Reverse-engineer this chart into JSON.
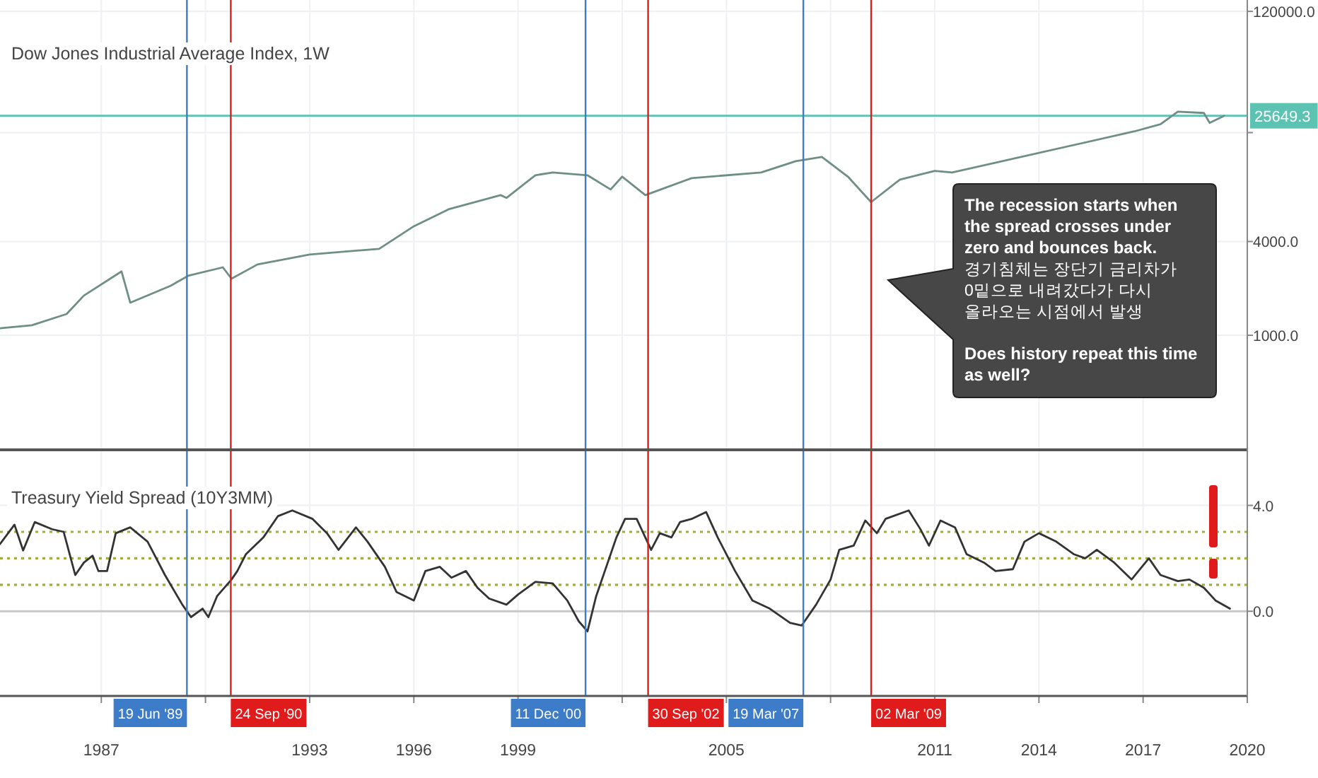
{
  "chart_data": [
    {
      "type": "line",
      "title": "Dow Jones Industrial Average Index, 1W",
      "log": "y",
      "grid": true,
      "tick_labels": "y",
      "color": "#6f8f86",
      "x": [
        "1984-02",
        "1985-01",
        "1986-01",
        "1986-07",
        "1987-08",
        "1987-11",
        "1989-01",
        "1989-07",
        "1990-07",
        "1990-10",
        "1991-07",
        "1993-01",
        "1995-01",
        "1996-01",
        "1997-01",
        "1998-07",
        "1998-09",
        "1999-07",
        "2000-01",
        "2001-01",
        "2001-09",
        "2002-01",
        "2002-09",
        "2003-01",
        "2004-01",
        "2006-01",
        "2007-01",
        "2007-10",
        "2008-07",
        "2009-03",
        "2010-01",
        "2011-01",
        "2011-07",
        "2016-10",
        "2017-07",
        "2018-01",
        "2018-10",
        "2018-12",
        "2019-05"
      ],
      "values": [
        1110,
        1160,
        1370,
        1800,
        2570,
        1620,
        2080,
        2410,
        2730,
        2310,
        2850,
        3300,
        3590,
        5010,
        6440,
        7940,
        7620,
        10650,
        11100,
        10650,
        8630,
        10430,
        7940,
        8450,
        10210,
        11100,
        13120,
        13970,
        10430,
        7160,
        10000,
        11350,
        11100,
        20370,
        22640,
        27290,
        26730,
        23110,
        25649.3
      ],
      "xlim": [
        "1984-02",
        "2020-01"
      ],
      "xticks": [
        "1987",
        {
          "value": "1990",
          "label": null
        },
        "1993",
        "1996",
        "1999",
        {
          "value": "2002",
          "label": null
        },
        "2005",
        {
          "value": "2008",
          "label": null
        },
        "2011",
        "2014",
        "2017",
        "2020"
      ],
      "ylim": [
        184,
        142000
      ],
      "yticks": [
        {
          "value": 1000,
          "label": "1000.0"
        },
        {
          "value": 4000,
          "label": "4000.0"
        },
        {
          "value": 20000,
          "label": null
        },
        {
          "value": 120000,
          "label": "120000.0"
        }
      ],
      "ref_lines": [
        {
          "axis": "y",
          "value": 25649.3,
          "label": "25649.3",
          "color": "#5cc2b2"
        },
        {
          "axis": "x",
          "value": "1989-06-19",
          "color": "#3d7cc9"
        },
        {
          "axis": "x",
          "value": "1990-09-24",
          "color": "#e01b1b"
        },
        {
          "axis": "x",
          "value": "2000-12-11",
          "color": "#3d7cc9"
        },
        {
          "axis": "x",
          "value": "2002-09-30",
          "color": "#e01b1b"
        },
        {
          "axis": "x",
          "value": "2007-03-19",
          "color": "#3d7cc9"
        },
        {
          "axis": "x",
          "value": "2009-03-02",
          "color": "#e01b1b"
        }
      ],
      "annotations": [
        "The recession starts when the spread crosses under zero and bounces back.",
        "경기침체는 장단기 금리차가 0밑으로 내려갔다가 다시 올라오는 시점에서 발생",
        "Does history repeat this time as well?"
      ]
    },
    {
      "type": "line",
      "title": "Treasury Yield Spread (10Y3MM)",
      "grid": true,
      "color": "#333333",
      "x": [
        "1984-02",
        "1984-07",
        "1984-10",
        "1985-02",
        "1985-08",
        "1985-12",
        "1986-04",
        "1986-07",
        "1986-10",
        "1986-12",
        "1987-03",
        "1987-06",
        "1987-11",
        "1988-05",
        "1988-11",
        "1989-05",
        "1989-08",
        "1989-12",
        "1990-02",
        "1990-05",
        "1990-10",
        "1990-12",
        "1991-03",
        "1991-09",
        "1992-02",
        "1992-07",
        "1993-02",
        "1993-07",
        "1993-11",
        "1994-05",
        "1994-09",
        "1995-03",
        "1995-07",
        "1996-01",
        "1996-05",
        "1996-10",
        "1997-02",
        "1997-07",
        "1997-11",
        "1998-03",
        "1998-09",
        "1999-01",
        "1999-07",
        "2000-01",
        "2000-06",
        "2000-10",
        "2001-01",
        "2001-04",
        "2001-07",
        "2001-11",
        "2002-02",
        "2002-06",
        "2002-11",
        "2003-02",
        "2003-06",
        "2003-09",
        "2004-01",
        "2004-06",
        "2004-10",
        "2005-04",
        "2005-10",
        "2006-04",
        "2006-11",
        "2007-03",
        "2007-08",
        "2008-01",
        "2008-04",
        "2008-09",
        "2009-01",
        "2009-05",
        "2009-08",
        "2010-04",
        "2010-08",
        "2010-11",
        "2011-03",
        "2011-08",
        "2011-12",
        "2012-06",
        "2012-10",
        "2013-04",
        "2013-08",
        "2014-01",
        "2014-07",
        "2015-01",
        "2015-05",
        "2015-09",
        "2016-03",
        "2016-09",
        "2017-03",
        "2017-07",
        "2018-01",
        "2018-05",
        "2018-10",
        "2019-02",
        "2019-07"
      ],
      "values": [
        2.54,
        3.27,
        2.3,
        3.37,
        3.1,
        3.0,
        1.37,
        1.84,
        2.1,
        1.52,
        1.52,
        2.95,
        3.17,
        2.63,
        1.37,
        0.25,
        -0.22,
        0.1,
        -0.22,
        0.57,
        1.2,
        1.52,
        2.16,
        2.79,
        3.59,
        3.81,
        3.49,
        2.95,
        2.32,
        3.17,
        2.63,
        1.68,
        0.73,
        0.41,
        1.52,
        1.68,
        1.27,
        1.52,
        0.89,
        0.48,
        0.25,
        0.63,
        1.11,
        1.05,
        0.41,
        -0.38,
        -0.76,
        0.57,
        1.52,
        2.79,
        3.49,
        3.49,
        2.32,
        2.95,
        2.79,
        3.37,
        3.49,
        3.75,
        2.79,
        1.52,
        0.41,
        0.1,
        -0.44,
        -0.54,
        0.25,
        1.2,
        2.32,
        2.48,
        3.43,
        2.95,
        3.49,
        3.81,
        3.11,
        2.48,
        3.43,
        3.17,
        2.16,
        1.84,
        1.52,
        1.59,
        2.63,
        2.95,
        2.63,
        2.16,
        2.0,
        2.32,
        1.84,
        1.2,
        2.0,
        1.37,
        1.14,
        1.2,
        0.89,
        0.41,
        0.1
      ],
      "xlim": [
        "1984-02",
        "2020-01"
      ],
      "xticks": [
        "1987",
        {
          "value": "1990",
          "label": null
        },
        "1993",
        "1996",
        "1999",
        {
          "value": "2002",
          "label": null
        },
        "2005",
        {
          "value": "2008",
          "label": null
        },
        "2011",
        "2014",
        "2017",
        {
          "value": "2020",
          "label": "2020"
        }
      ],
      "ylim": [
        -3.2,
        6.1
      ],
      "yticks": [
        {
          "value": 0,
          "label": "0.0"
        },
        {
          "value": 4,
          "label": "4.0"
        }
      ],
      "ref_lines": [
        {
          "axis": "y",
          "value": 0,
          "color": "#c8c8c8",
          "line_style": "solid"
        },
        {
          "axis": "y",
          "value": 1,
          "color": "#a3ad3a",
          "line_style": "dotted"
        },
        {
          "axis": "y",
          "value": 2,
          "color": "#a3ad3a",
          "line_style": "dotted"
        },
        {
          "axis": "y",
          "value": 3,
          "color": "#a3ad3a",
          "line_style": "dotted"
        },
        {
          "axis": "x",
          "value": "1989-06-19",
          "label": "19 Jun '89",
          "color": "#3d7cc9"
        },
        {
          "axis": "x",
          "value": "1990-09-24",
          "label": "24 Sep '90",
          "color": "#e01b1b"
        },
        {
          "axis": "x",
          "value": "2000-12-11",
          "label": "11 Dec '00",
          "color": "#3d7cc9"
        },
        {
          "axis": "x",
          "value": "2002-09-30",
          "label": "30 Sep '02",
          "color": "#e01b1b"
        },
        {
          "axis": "x",
          "value": "2007-03-19",
          "label": "19 Mar '07",
          "color": "#3d7cc9"
        },
        {
          "axis": "x",
          "value": "2009-03-02",
          "label": "02 Mar '09",
          "color": "#e01b1b"
        }
      ]
    }
  ]
}
